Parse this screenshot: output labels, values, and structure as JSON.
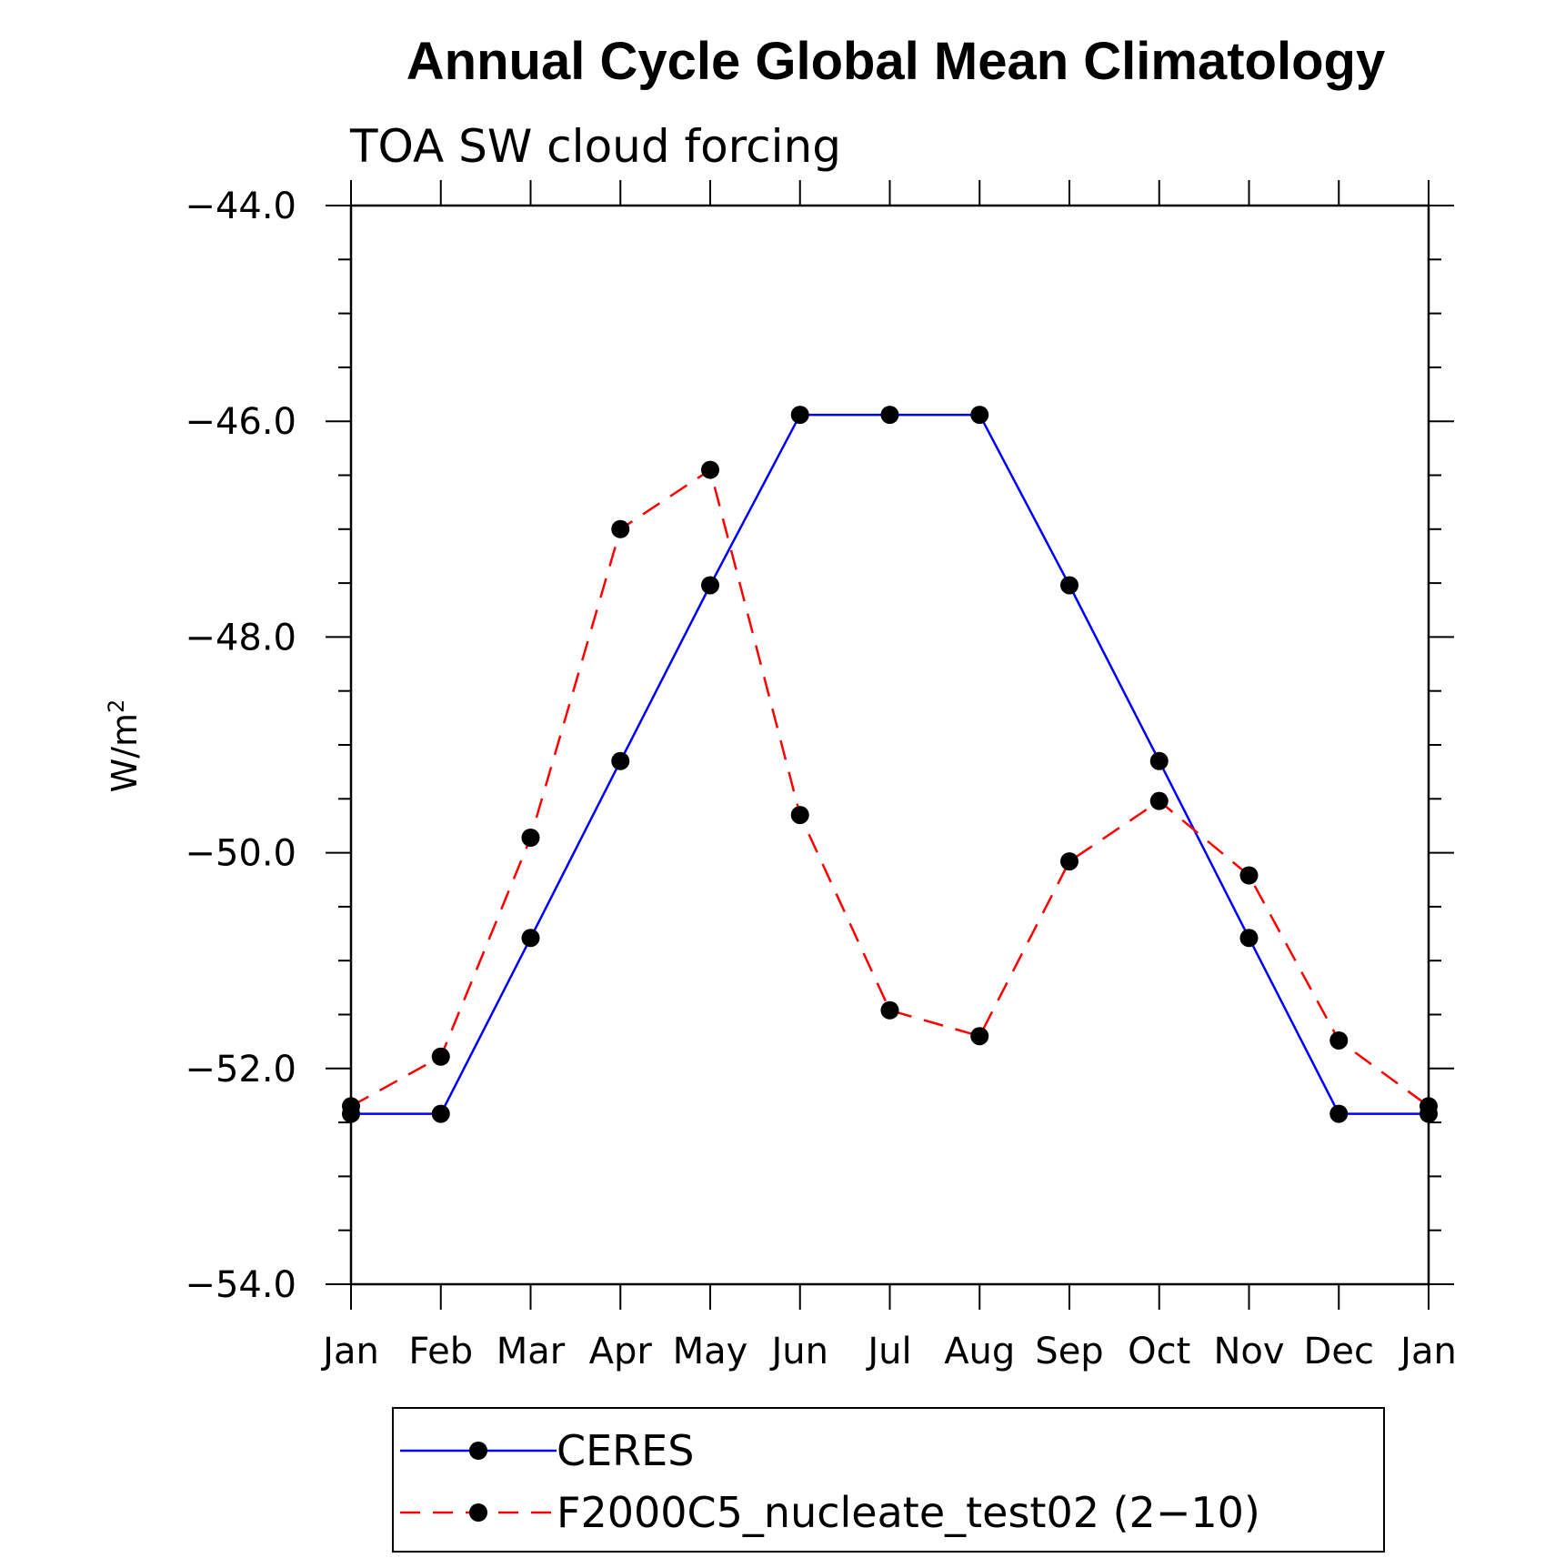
{
  "chart_data": {
    "type": "line",
    "title": "Annual Cycle Global Mean Climatology",
    "subtitle": "TOA SW cloud forcing",
    "ylabel": "W/m",
    "ylabel_sup": "2",
    "xlabel": "",
    "categories": [
      "Jan",
      "Feb",
      "Mar",
      "Apr",
      "May",
      "Jun",
      "Jul",
      "Aug",
      "Sep",
      "Oct",
      "Nov",
      "Dec",
      "Jan"
    ],
    "ylim": [
      -54.0,
      -44.0
    ],
    "yticks": [
      -54.0,
      -52.0,
      -50.0,
      -48.0,
      -46.0,
      -44.0
    ],
    "ytick_labels": [
      "−54.0",
      "−52.0",
      "−50.0",
      "−48.0",
      "−46.0",
      "−44.0"
    ],
    "grid": false,
    "legend_position": "bottom",
    "series": [
      {
        "name": "CERES",
        "color": "#0000ff",
        "dash": "solid",
        "marker": "circle",
        "values": [
          -52.42,
          -52.42,
          -50.79,
          -49.15,
          -47.52,
          -45.94,
          -45.94,
          -45.94,
          -47.52,
          -49.15,
          -50.79,
          -52.42,
          -52.42
        ]
      },
      {
        "name": "F2000C5_nucleate_test02 (2−10)",
        "color": "#ff0000",
        "dash": "dashed",
        "marker": "circle",
        "values": [
          -52.35,
          -51.89,
          -49.86,
          -47.0,
          -46.45,
          -49.65,
          -51.46,
          -51.7,
          -50.08,
          -49.52,
          -50.21,
          -51.74,
          -52.35
        ]
      }
    ]
  }
}
